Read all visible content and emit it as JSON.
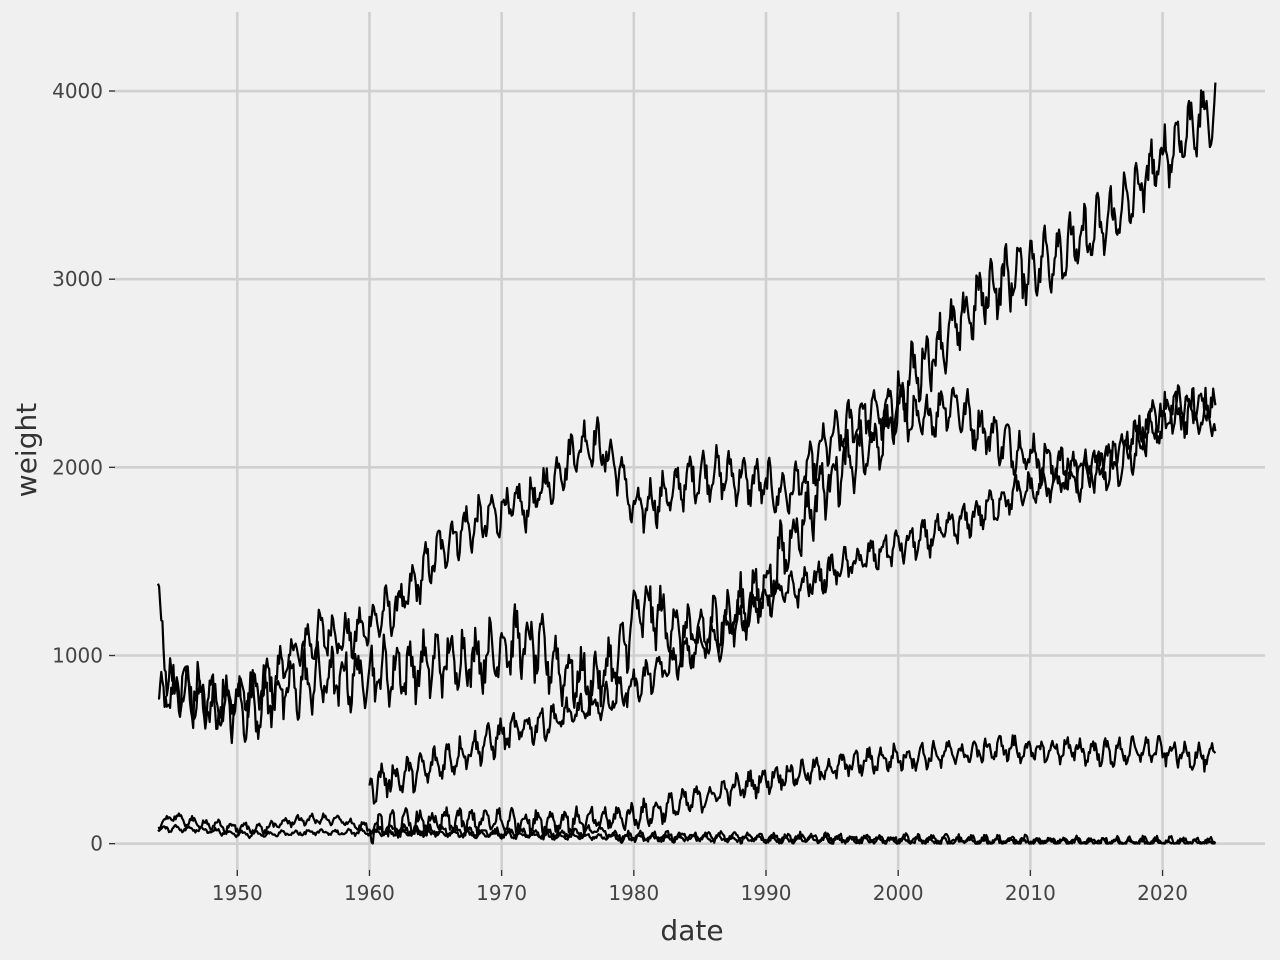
{
  "chart_data": {
    "type": "line",
    "xlabel": "date",
    "ylabel": "weight",
    "grid": true,
    "legend": "none",
    "xlim": [
      "1940-10-01",
      "2027-10-01"
    ],
    "ylim": [
      -140,
      4420
    ],
    "x_ticks": [
      "1950",
      "1960",
      "1970",
      "1980",
      "1990",
      "2000",
      "2010",
      "2020"
    ],
    "y_ticks": [
      0,
      1000,
      2000,
      3000,
      4000
    ],
    "series_color": "#000000",
    "background_color": "#f0f0f0",
    "grid_color": "#d0d0d0",
    "series": [
      {
        "x": [
          "1944-01",
          "1945-01",
          "1946-01",
          "1947-01",
          "1948-01",
          "1949-01",
          "1950-01",
          "1951-01",
          "1952-01",
          "1953-01",
          "1954-01",
          "1955-01",
          "1956-01",
          "1957-01",
          "1958-01",
          "1959-01",
          "1960-01",
          "1961-01",
          "1962-01",
          "1963-01",
          "1964-01",
          "1965-01",
          "1966-01",
          "1967-01",
          "1968-01",
          "1969-01",
          "1970-01",
          "1971-01",
          "1972-01",
          "1973-01",
          "1974-01",
          "1975-01",
          "1976-01",
          "1977-01",
          "1978-01",
          "1979-01",
          "1980-01",
          "1981-01",
          "1982-01",
          "1983-01",
          "1984-01",
          "1985-01",
          "1986-01",
          "1987-01",
          "1988-01",
          "1989-01",
          "1990-01",
          "1991-01",
          "1992-01",
          "1993-01",
          "1994-01",
          "1995-01",
          "1996-01",
          "1997-01",
          "1998-01",
          "1999-01",
          "2000-01",
          "2001-01",
          "2002-01",
          "2003-01",
          "2004-01",
          "2005-01",
          "2006-01",
          "2007-01",
          "2008-01",
          "2009-01",
          "2010-01",
          "2011-01",
          "2012-01",
          "2013-01",
          "2014-01",
          "2015-01",
          "2016-01",
          "2017-01",
          "2018-01",
          "2019-01",
          "2020-01",
          "2021-01",
          "2022-01",
          "2023-01",
          "2024-01"
        ],
        "values": [
          750,
          790,
          820,
          760,
          740,
          760,
          780,
          790,
          830,
          900,
          990,
          1050,
          1100,
          1130,
          1090,
          1110,
          1170,
          1220,
          1250,
          1330,
          1430,
          1530,
          1610,
          1670,
          1690,
          1730,
          1770,
          1800,
          1790,
          1880,
          1940,
          2040,
          2120,
          2140,
          2060,
          1980,
          1760,
          1800,
          1840,
          1870,
          1930,
          1960,
          1970,
          1960,
          1940,
          1920,
          1910,
          1860,
          1880,
          1960,
          2070,
          2150,
          2200,
          2260,
          2300,
          2280,
          2330,
          2240,
          2250,
          2300,
          2350,
          2290,
          2210,
          2180,
          2130,
          2090,
          2070,
          2030,
          2020,
          1980,
          1960,
          1980,
          2000,
          2060,
          2120,
          2200,
          2260,
          2300,
          2290,
          2280,
          2250
        ],
        "spread": 110
      },
      {
        "x": [
          "1944-01",
          "1945-01",
          "1946-01",
          "1947-01",
          "1948-01",
          "1949-01",
          "1950-01",
          "1951-01",
          "1952-01",
          "1953-01",
          "1954-01",
          "1955-01",
          "1956-01",
          "1957-01",
          "1958-01",
          "1959-01",
          "1960-01",
          "1961-01",
          "1962-01",
          "1963-01",
          "1964-01",
          "1965-01",
          "1966-01",
          "1967-01",
          "1968-01",
          "1969-01",
          "1970-01",
          "1971-01",
          "1972-01",
          "1973-01",
          "1974-01",
          "1975-01",
          "1976-01",
          "1977-01",
          "1978-01",
          "1979-01",
          "1980-01",
          "1981-01",
          "1982-01",
          "1983-01",
          "1984-01",
          "1985-01",
          "1986-01",
          "1987-01",
          "1988-01",
          "1989-01",
          "1990-01",
          "1991-01",
          "1992-01",
          "1993-01",
          "1994-01",
          "1995-01",
          "1996-01",
          "1997-01",
          "1998-01",
          "1999-01",
          "2000-01",
          "2001-01",
          "2002-01",
          "2003-01",
          "2004-01",
          "2005-01",
          "2006-01",
          "2007-01",
          "2008-01",
          "2009-01",
          "2010-01",
          "2011-01",
          "2012-01",
          "2013-01",
          "2014-01",
          "2015-01",
          "2016-01",
          "2017-01",
          "2018-01",
          "2019-01",
          "2020-01",
          "2021-01",
          "2022-01",
          "2023-01",
          "2024-01"
        ],
        "values": [
          1250,
          830,
          820,
          780,
          750,
          730,
          720,
          740,
          760,
          790,
          820,
          850,
          870,
          880,
          870,
          890,
          900,
          910,
          920,
          930,
          940,
          960,
          970,
          980,
          990,
          1000,
          1040,
          1080,
          1050,
          1020,
          960,
          900,
          880,
          860,
          930,
          990,
          1210,
          1250,
          1200,
          1150,
          1120,
          1110,
          1140,
          1180,
          1230,
          1300,
          1380,
          1500,
          1640,
          1730,
          1870,
          1960,
          2000,
          2050,
          2100,
          2160,
          2360,
          2480,
          2560,
          2640,
          2710,
          2790,
          2880,
          2950,
          3000,
          3030,
          3060,
          3100,
          3140,
          3170,
          3200,
          3260,
          3310,
          3380,
          3460,
          3560,
          3640,
          3720,
          3800,
          3860,
          3860
        ],
        "spread": 150
      },
      {
        "x": [
          "1960-01",
          "1961-01",
          "1962-01",
          "1963-01",
          "1964-01",
          "1965-01",
          "1966-01",
          "1967-01",
          "1968-01",
          "1969-01",
          "1970-01",
          "1971-01",
          "1972-01",
          "1973-01",
          "1974-01",
          "1975-01",
          "1976-01",
          "1977-01",
          "1978-01",
          "1979-01",
          "1980-01",
          "1981-01",
          "1982-01",
          "1983-01",
          "1984-01",
          "1985-01",
          "1986-01",
          "1987-01",
          "1988-01",
          "1989-01",
          "1990-01",
          "1991-01",
          "1992-01",
          "1993-01",
          "1994-01",
          "1995-01",
          "1996-01",
          "1997-01",
          "1998-01",
          "1999-01",
          "2000-01",
          "2001-01",
          "2002-01",
          "2003-01",
          "2004-01",
          "2005-01",
          "2006-01",
          "2007-01",
          "2008-01",
          "2009-01",
          "2010-01",
          "2011-01",
          "2012-01",
          "2013-01",
          "2014-01",
          "2015-01",
          "2016-01",
          "2017-01",
          "2018-01",
          "2019-01",
          "2020-01",
          "2021-01",
          "2022-01",
          "2023-01",
          "2024-01"
        ],
        "values": [
          300,
          340,
          350,
          370,
          390,
          420,
          450,
          480,
          510,
          540,
          570,
          600,
          620,
          640,
          660,
          680,
          700,
          730,
          760,
          800,
          840,
          880,
          920,
          960,
          1000,
          1050,
          1100,
          1150,
          1200,
          1260,
          1300,
          1330,
          1350,
          1380,
          1410,
          1450,
          1480,
          1500,
          1530,
          1560,
          1580,
          1600,
          1620,
          1650,
          1680,
          1710,
          1750,
          1790,
          1830,
          1860,
          1880,
          1900,
          1920,
          1950,
          1980,
          2000,
          2050,
          2100,
          2150,
          2200,
          2250,
          2300,
          2320,
          2330,
          2320
        ],
        "spread": 80
      },
      {
        "x": [
          "1960-01",
          "1961-01",
          "1962-01",
          "1963-01",
          "1964-01",
          "1965-01",
          "1966-01",
          "1967-01",
          "1968-01",
          "1969-01",
          "1970-01",
          "1971-01",
          "1972-01",
          "1973-01",
          "1974-01",
          "1975-01",
          "1976-01",
          "1977-01",
          "1978-01",
          "1979-01",
          "1980-01",
          "1981-01",
          "1982-01",
          "1983-01",
          "1984-01",
          "1985-01",
          "1986-01",
          "1987-01",
          "1988-01",
          "1989-01",
          "1990-01",
          "1991-01",
          "1992-01",
          "1993-01",
          "1994-01",
          "1995-01",
          "1996-01",
          "1997-01",
          "1998-01",
          "1999-01",
          "2000-01",
          "2001-01",
          "2002-01",
          "2003-01",
          "2004-01",
          "2005-01",
          "2006-01",
          "2007-01",
          "2008-01",
          "2009-01",
          "2010-01",
          "2011-01",
          "2012-01",
          "2013-01",
          "2014-01",
          "2015-01",
          "2016-01",
          "2017-01",
          "2018-01",
          "2019-01",
          "2020-01",
          "2021-01",
          "2022-01",
          "2023-01",
          "2024-01"
        ],
        "values": [
          60,
          90,
          100,
          110,
          110,
          115,
          120,
          120,
          120,
          120,
          120,
          120,
          120,
          120,
          120,
          120,
          120,
          120,
          130,
          140,
          150,
          160,
          180,
          200,
          220,
          240,
          260,
          280,
          300,
          320,
          340,
          360,
          370,
          380,
          390,
          400,
          420,
          430,
          440,
          450,
          460,
          460,
          470,
          470,
          480,
          480,
          490,
          500,
          510,
          500,
          490,
          490,
          500,
          500,
          490,
          490,
          480,
          490,
          490,
          500,
          490,
          480,
          470,
          460,
          450
        ],
        "spread": 60
      },
      {
        "x": [
          "1944-01",
          "1945-01",
          "1946-01",
          "1947-01",
          "1948-01",
          "1949-01",
          "1950-01",
          "1952-01",
          "1954-01",
          "1956-01",
          "1958-01",
          "1960-01",
          "1962-01",
          "1964-01",
          "1966-01",
          "1968-01",
          "1970-01",
          "1972-01",
          "1974-01",
          "1976-01",
          "1977-06",
          "1979-01",
          "1980-01",
          "1985-01",
          "1990-01",
          "1995-01",
          "2000-01",
          "2005-01",
          "2010-01",
          "2015-01",
          "2020-01",
          "2024-01"
        ],
        "values": [
          90,
          150,
          120,
          110,
          100,
          90,
          85,
          80,
          120,
          130,
          120,
          80,
          75,
          70,
          65,
          60,
          55,
          55,
          50,
          60,
          75,
          40,
          35,
          40,
          30,
          28,
          22,
          18,
          15,
          12,
          10,
          8
        ],
        "spread": 25
      },
      {
        "x": [
          "1944-01",
          "1946-01",
          "1948-01",
          "1950-01",
          "1952-01",
          "1954-01",
          "1956-01",
          "1958-01",
          "1960-01",
          "1962-01",
          "1964-01",
          "1966-01",
          "1968-01",
          "1970-01",
          "1972-01",
          "1974-01",
          "1976-01",
          "1978-01",
          "1980-01",
          "1985-01",
          "1990-01",
          "1995-01",
          "2000-01",
          "2005-01",
          "2010-01",
          "2015-01",
          "2020-01",
          "2024-01"
        ],
        "values": [
          80,
          80,
          70,
          50,
          50,
          55,
          60,
          60,
          60,
          60,
          60,
          55,
          50,
          50,
          45,
          40,
          40,
          35,
          30,
          30,
          25,
          22,
          20,
          15,
          12,
          10,
          8,
          5
        ],
        "spread": 15
      }
    ]
  }
}
